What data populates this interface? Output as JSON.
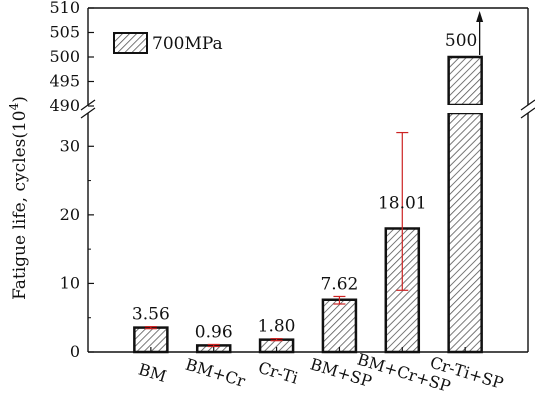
{
  "chart_data": {
    "type": "bar",
    "categories": [
      "BM",
      "BM+Cr",
      "Cr-Ti",
      "BM+SP",
      "BM+Cr+SP",
      "Cr-Ti+SP"
    ],
    "series": [
      {
        "name": "700MPa",
        "values": [
          3.56,
          0.96,
          1.8,
          7.62,
          18.01,
          500
        ],
        "value_labels": [
          "3.56",
          "0.96",
          "1.80",
          "7.62",
          "18.01",
          "500"
        ],
        "error_low": [
          3.4,
          0.8,
          1.65,
          7.0,
          9.0,
          null
        ],
        "error_high": [
          3.7,
          1.1,
          1.95,
          8.1,
          32.0,
          null
        ],
        "runout": [
          false,
          false,
          false,
          false,
          false,
          true
        ]
      }
    ],
    "ylabel": "Fatigue life, cycles",
    "ylabel_exponent_base": "(10",
    "ylabel_exponent": "4",
    "ylabel_close": ")",
    "y_axis_broken": true,
    "ylim_lower": [
      0,
      35
    ],
    "ylim_upper": [
      490,
      510
    ],
    "yticks_lower": [
      "0",
      "10",
      "20",
      "30"
    ],
    "yticks_upper": [
      "490",
      "495",
      "500",
      "505",
      "510"
    ],
    "grid": false,
    "legend_position": "top-left",
    "pattern": "diagonal-hatch",
    "colors": {
      "bar_fill": "#ffffff",
      "hatch": "#555555",
      "error_bar": "#cc2222",
      "axis": "#111111"
    }
  }
}
